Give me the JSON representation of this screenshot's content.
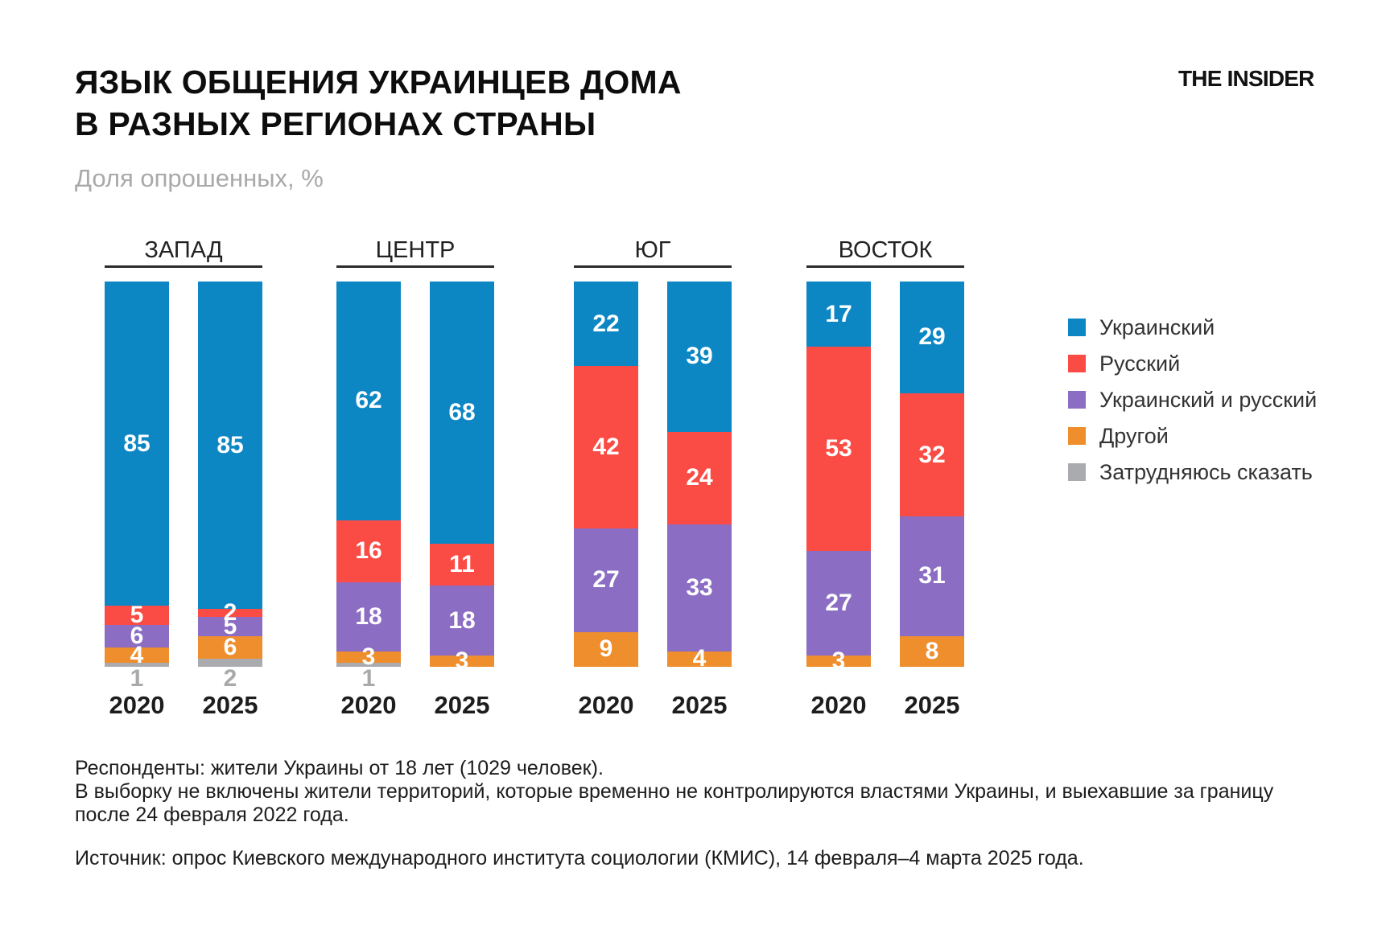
{
  "header": {
    "title_line1": "ЯЗЫК ОБЩЕНИЯ УКРАИНЦЕВ ДОМА",
    "title_line2": "В РАЗНЫХ РЕГИОНАХ СТРАНЫ",
    "subtitle": "Доля опрошенных, %",
    "logo": "THE INSIDER"
  },
  "colors": {
    "ukrainian_blue": "#0d87c4",
    "russian_red": "#fa4b45",
    "both_purple": "#8b6dc3",
    "other_orange": "#ef8e2c",
    "hard_to_say_gray": "#a9abae",
    "text_dark": "#1d1d1d",
    "text_gray": "#a7a9ab",
    "underline_dark": "#2b2b2b"
  },
  "chart_data": {
    "type": "bar",
    "stacked": true,
    "unit": "%",
    "value_range": [
      0,
      100
    ],
    "legend_position": "right",
    "title": "ЯЗЫК ОБЩЕНИЯ УКРАИНЦЕВ ДОМА В РАЗНЫХ РЕГИОНАХ СТРАНЫ",
    "subtitle": "Доля опрошенных, %",
    "series": [
      {
        "name": "Украинский",
        "color": "#0d87c4",
        "label_outside": false
      },
      {
        "name": "Русский",
        "color": "#fa4b45",
        "label_outside": false
      },
      {
        "name": "Украинский и русский",
        "color": "#8b6dc3",
        "label_outside": false
      },
      {
        "name": "Другой",
        "color": "#ef8e2c",
        "label_outside": false
      },
      {
        "name": "Затрудняюсь сказать",
        "color": "#a9abae",
        "label_outside": true
      }
    ],
    "groups": [
      {
        "region": "ЗАПАД",
        "bars": [
          {
            "year": "2020",
            "values": [
              85,
              5,
              6,
              4,
              1
            ]
          },
          {
            "year": "2025",
            "values": [
              85,
              2,
              5,
              6,
              2
            ]
          }
        ]
      },
      {
        "region": "ЦЕНТР",
        "bars": [
          {
            "year": "2020",
            "values": [
              62,
              16,
              18,
              3,
              1
            ]
          },
          {
            "year": "2025",
            "values": [
              68,
              11,
              18,
              3,
              0
            ]
          }
        ]
      },
      {
        "region": "ЮГ",
        "bars": [
          {
            "year": "2020",
            "values": [
              22,
              42,
              27,
              9,
              0
            ]
          },
          {
            "year": "2025",
            "values": [
              39,
              24,
              33,
              4,
              0
            ]
          }
        ]
      },
      {
        "region": "ВОСТОК",
        "bars": [
          {
            "year": "2020",
            "values": [
              17,
              53,
              27,
              3,
              0
            ]
          },
          {
            "year": "2025",
            "values": [
              29,
              32,
              31,
              8,
              0
            ]
          }
        ]
      }
    ]
  },
  "footnotes": [
    "Респонденты: жители Украины от 18 лет (1029 человек).",
    "В выборку не включены жители территорий, которые временно не контролируются властями Украины, и выехавшие за границу",
    "после 24 февраля 2022 года."
  ],
  "source": "Источник: опрос Киевского международного института социологии (КМИС), 14 февраля–4 марта 2025 года."
}
